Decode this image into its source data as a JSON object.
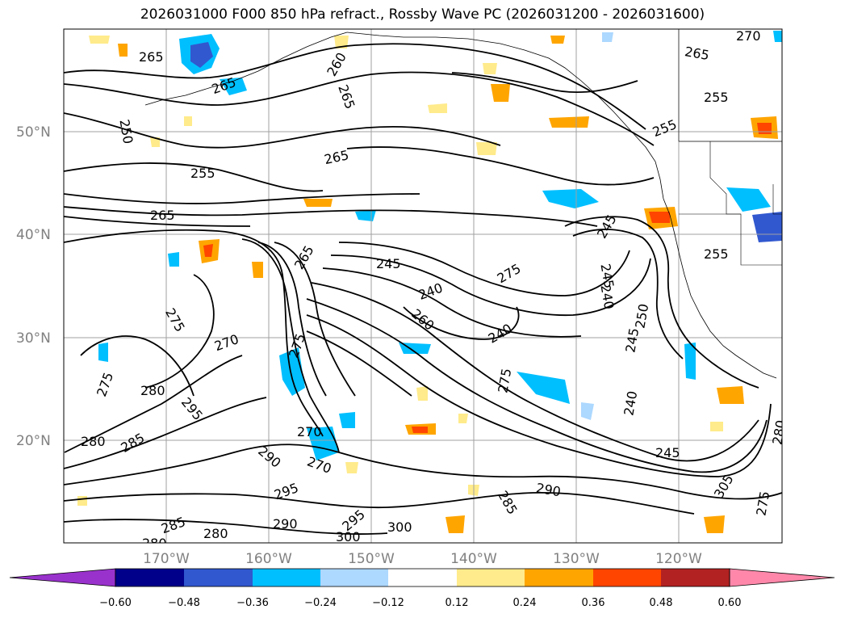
{
  "title": "2026031000 F000 850 hPa refract., Rossby Wave PC (2026031200 - 2026031600)",
  "lat_labels": [
    "50°N",
    "40°N",
    "30°N",
    "20°N"
  ],
  "lon_labels": [
    "170°W",
    "160°W",
    "150°W",
    "140°W",
    "130°W",
    "120°W"
  ],
  "contour_labels": [
    {
      "t": "265"
    },
    {
      "t": "260"
    },
    {
      "t": "265"
    },
    {
      "t": "265"
    },
    {
      "t": "250"
    },
    {
      "t": "255"
    },
    {
      "t": "265"
    },
    {
      "t": "265"
    },
    {
      "t": "255"
    },
    {
      "t": "265"
    },
    {
      "t": "270"
    },
    {
      "t": "255"
    },
    {
      "t": "255"
    },
    {
      "t": "245"
    },
    {
      "t": "275"
    },
    {
      "t": "240"
    },
    {
      "t": "265"
    },
    {
      "t": "240"
    },
    {
      "t": "260"
    },
    {
      "t": "275"
    },
    {
      "t": "270"
    },
    {
      "t": "245"
    },
    {
      "t": "245"
    },
    {
      "t": "240"
    },
    {
      "t": "250"
    },
    {
      "t": "245"
    },
    {
      "t": "275"
    },
    {
      "t": "280"
    },
    {
      "t": "295"
    },
    {
      "t": "280"
    },
    {
      "t": "285"
    },
    {
      "t": "290"
    },
    {
      "t": "270"
    },
    {
      "t": "270"
    },
    {
      "t": "275"
    },
    {
      "t": "295"
    },
    {
      "t": "290"
    },
    {
      "t": "285"
    },
    {
      "t": "280"
    },
    {
      "t": "295"
    },
    {
      "t": "300"
    },
    {
      "t": "300"
    },
    {
      "t": "290"
    },
    {
      "t": "285"
    },
    {
      "t": "245"
    },
    {
      "t": "305"
    },
    {
      "t": "280"
    },
    {
      "t": "275"
    },
    {
      "t": "240"
    },
    {
      "t": "280"
    },
    {
      "t": "275"
    }
  ],
  "colorbar": {
    "ticks": [
      "−0.60",
      "−0.48",
      "−0.36",
      "−0.24",
      "−0.12",
      "0.12",
      "0.24",
      "0.36",
      "0.48",
      "0.60"
    ],
    "low_extend_color": "#9932cc",
    "high_extend_color": "#ff88aa",
    "colors": [
      "#00008b",
      "#3158cf",
      "#00bfff",
      "#add8ff",
      "#ffffff",
      "#ffeb8b",
      "#ffa500",
      "#ff4500",
      "#b22222"
    ]
  }
}
